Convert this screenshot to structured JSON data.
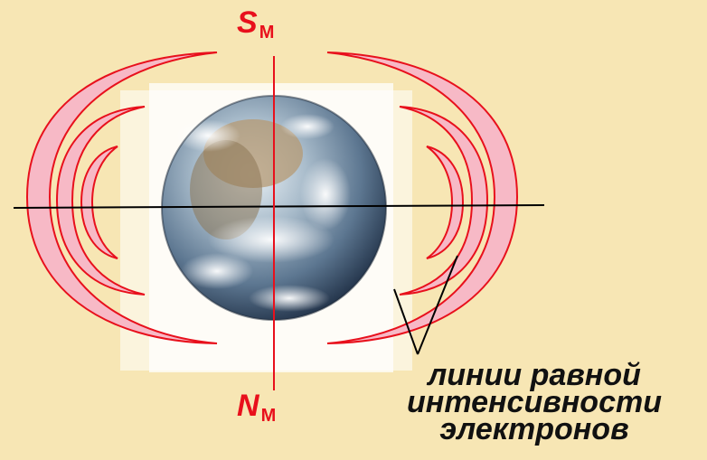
{
  "poles": {
    "south": {
      "letter": "S",
      "subscript": "M"
    },
    "north": {
      "letter": "N",
      "subscript": "M"
    }
  },
  "caption": {
    "line1": "линии равной",
    "line2": "интенсивности",
    "line3": "электронов"
  },
  "colors": {
    "background": "#f7e6b4",
    "belt_fill": "#f7b9c6",
    "belt_stroke": "#e8101c",
    "axis_line": "#000000",
    "pole_text": "#e8101c",
    "caption_text": "#111111"
  },
  "icons": {
    "planet": "earth-globe"
  }
}
